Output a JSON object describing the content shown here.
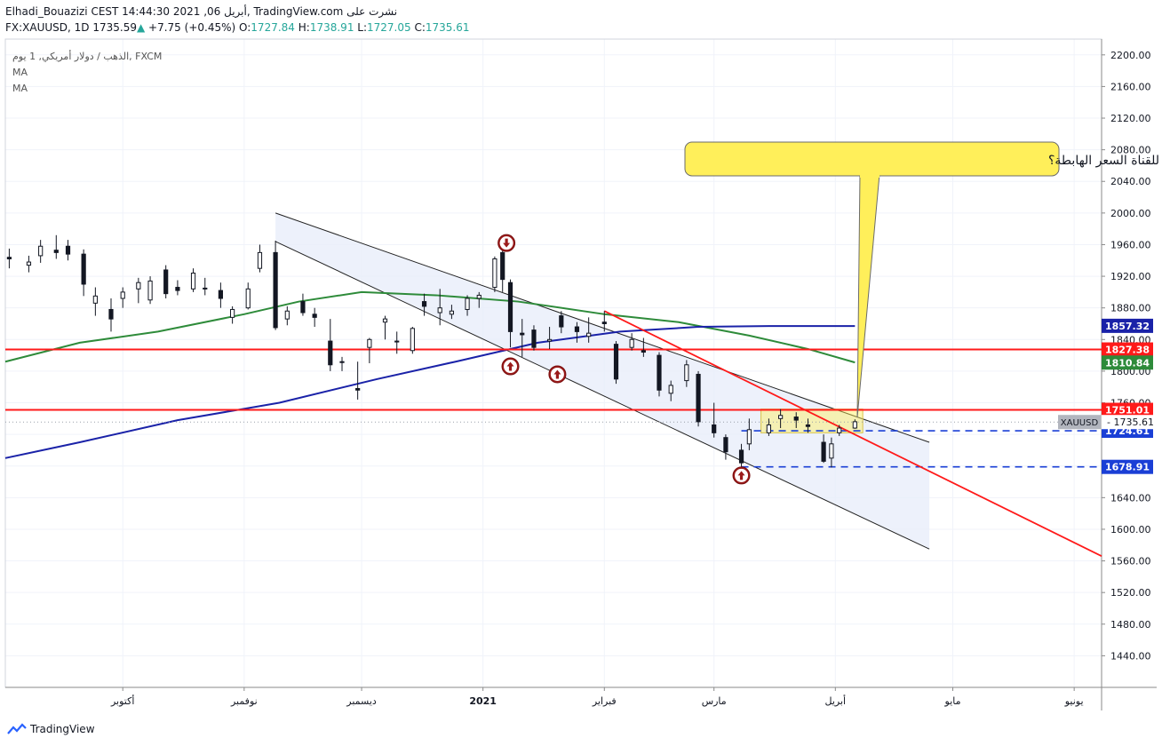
{
  "header": {
    "line1": "Elhadi_Bouazizi CEST 14:44:30 2021 ,06 أبريل, TradingView.com نشرت على",
    "symbol": "FX:XAUUSD, 1D",
    "last": "1735.59",
    "change": "+7.75 (+0.45%)",
    "open_label": "O:",
    "open": "1727.84",
    "high_label": "H:",
    "high": "1738.91",
    "low_label": "L:",
    "low": "1727.05",
    "close_label": "C:",
    "close": "1735.61"
  },
  "legend": {
    "instrument": "الذهب / دولار أمريكي, 1 يوم, FXCM",
    "ma1": "MA",
    "ma2": "MA"
  },
  "colors": {
    "up": "#26a69a",
    "candle": "#131722",
    "ma_green": "#2e8b3a",
    "ma_blue": "#1a22a8",
    "level_red": "#ff1a1a",
    "dashed_blue": "#1a3fd6",
    "channel_fill": "#e8eefa",
    "callout_fill": "#ffef5a"
  },
  "callout": {
    "text": "هل تتشكل نقطة الارتكاز الرابعة للقناة السعر الهابطة؟"
  },
  "footer": {
    "brand": "TradingView"
  },
  "chart_data": {
    "type": "candlestick",
    "title": "",
    "ylim": [
      1400,
      2220
    ],
    "y_ticks": [
      1440,
      1480,
      1520,
      1560,
      1600,
      1640,
      1680,
      1720,
      1760,
      1800,
      1840,
      1880,
      1920,
      1960,
      2000,
      2040,
      2080,
      2120,
      2160,
      2200
    ],
    "x_labels": [
      {
        "label": "أكتوبر",
        "date": "2020-10-01"
      },
      {
        "label": "نوفمبر",
        "date": "2020-11-01"
      },
      {
        "label": "ديسمبر",
        "date": "2020-12-01"
      },
      {
        "label": "2021",
        "date": "2021-01-01"
      },
      {
        "label": "فبراير",
        "date": "2021-02-01"
      },
      {
        "label": "مارس",
        "date": "2021-03-01"
      },
      {
        "label": "أبريل",
        "date": "2021-04-01"
      },
      {
        "label": "مايو",
        "date": "2021-05-01"
      },
      {
        "label": "يونيو",
        "date": "2021-06-01"
      }
    ],
    "x_range": [
      "2020-09-01",
      "2021-06-08"
    ],
    "horizontal_levels": [
      {
        "value": 1827.38,
        "label": "1827.38",
        "style": "solid",
        "color": "#ff1a1a"
      },
      {
        "value": 1751.01,
        "label": "1751.01",
        "style": "solid",
        "color": "#ff1a1a"
      },
      {
        "value": 1724.61,
        "label": "1724.61",
        "style": "dashed",
        "color": "#1a3fd6"
      },
      {
        "value": 1678.91,
        "label": "1678.91",
        "style": "dashed",
        "color": "#1a3fd6"
      }
    ],
    "price_labels": [
      {
        "value": 1857.32,
        "label": "1857.32",
        "color": "#1a22a8"
      },
      {
        "value": 1810.84,
        "label": "1810.84",
        "color": "#2e8b3a"
      },
      {
        "value": 1735.61,
        "label": "1735.61",
        "color": "#8e8e8e",
        "symbol": "XAUUSD"
      }
    ],
    "candles": [
      {
        "d": "2020-09-02",
        "o": 1944,
        "h": 1955,
        "l": 1930,
        "c": 1942
      },
      {
        "d": "2020-09-07",
        "o": 1934,
        "h": 1946,
        "l": 1925,
        "c": 1938
      },
      {
        "d": "2020-09-10",
        "o": 1946,
        "h": 1966,
        "l": 1937,
        "c": 1958
      },
      {
        "d": "2020-09-14",
        "o": 1953,
        "h": 1972,
        "l": 1942,
        "c": 1950
      },
      {
        "d": "2020-09-17",
        "o": 1958,
        "h": 1966,
        "l": 1940,
        "c": 1948
      },
      {
        "d": "2020-09-21",
        "o": 1948,
        "h": 1954,
        "l": 1895,
        "c": 1910
      },
      {
        "d": "2020-09-24",
        "o": 1886,
        "h": 1906,
        "l": 1870,
        "c": 1895
      },
      {
        "d": "2020-09-28",
        "o": 1878,
        "h": 1892,
        "l": 1850,
        "c": 1866
      },
      {
        "d": "2020-10-01",
        "o": 1892,
        "h": 1906,
        "l": 1880,
        "c": 1900
      },
      {
        "d": "2020-10-05",
        "o": 1904,
        "h": 1918,
        "l": 1886,
        "c": 1912
      },
      {
        "d": "2020-10-08",
        "o": 1890,
        "h": 1920,
        "l": 1885,
        "c": 1914
      },
      {
        "d": "2020-10-12",
        "o": 1928,
        "h": 1934,
        "l": 1892,
        "c": 1898
      },
      {
        "d": "2020-10-15",
        "o": 1906,
        "h": 1915,
        "l": 1896,
        "c": 1902
      },
      {
        "d": "2020-10-19",
        "o": 1904,
        "h": 1930,
        "l": 1900,
        "c": 1924
      },
      {
        "d": "2020-10-22",
        "o": 1905,
        "h": 1918,
        "l": 1896,
        "c": 1904
      },
      {
        "d": "2020-10-26",
        "o": 1902,
        "h": 1912,
        "l": 1880,
        "c": 1892
      },
      {
        "d": "2020-10-29",
        "o": 1868,
        "h": 1882,
        "l": 1860,
        "c": 1878
      },
      {
        "d": "2020-11-02",
        "o": 1880,
        "h": 1912,
        "l": 1878,
        "c": 1904
      },
      {
        "d": "2020-11-05",
        "o": 1930,
        "h": 1960,
        "l": 1925,
        "c": 1950
      },
      {
        "d": "2020-11-09",
        "o": 1950,
        "h": 1965,
        "l": 1852,
        "c": 1855
      },
      {
        "d": "2020-11-12",
        "o": 1866,
        "h": 1882,
        "l": 1858,
        "c": 1876
      },
      {
        "d": "2020-11-16",
        "o": 1888,
        "h": 1898,
        "l": 1870,
        "c": 1874
      },
      {
        "d": "2020-11-19",
        "o": 1872,
        "h": 1880,
        "l": 1856,
        "c": 1868
      },
      {
        "d": "2020-11-23",
        "o": 1838,
        "h": 1866,
        "l": 1800,
        "c": 1808
      },
      {
        "d": "2020-11-26",
        "o": 1812,
        "h": 1818,
        "l": 1800,
        "c": 1812
      },
      {
        "d": "2020-11-30",
        "o": 1778,
        "h": 1812,
        "l": 1764,
        "c": 1776
      },
      {
        "d": "2020-12-03",
        "o": 1830,
        "h": 1842,
        "l": 1810,
        "c": 1840
      },
      {
        "d": "2020-12-07",
        "o": 1862,
        "h": 1870,
        "l": 1840,
        "c": 1866
      },
      {
        "d": "2020-12-10",
        "o": 1838,
        "h": 1850,
        "l": 1822,
        "c": 1838
      },
      {
        "d": "2020-12-14",
        "o": 1826,
        "h": 1856,
        "l": 1822,
        "c": 1854
      },
      {
        "d": "2020-12-17",
        "o": 1888,
        "h": 1898,
        "l": 1870,
        "c": 1882
      },
      {
        "d": "2020-12-21",
        "o": 1874,
        "h": 1904,
        "l": 1858,
        "c": 1880
      },
      {
        "d": "2020-12-24",
        "o": 1872,
        "h": 1884,
        "l": 1866,
        "c": 1876
      },
      {
        "d": "2020-12-28",
        "o": 1878,
        "h": 1896,
        "l": 1870,
        "c": 1892
      },
      {
        "d": "2020-12-31",
        "o": 1892,
        "h": 1900,
        "l": 1880,
        "c": 1896
      },
      {
        "d": "2021-01-04",
        "o": 1906,
        "h": 1945,
        "l": 1900,
        "c": 1942
      },
      {
        "d": "2021-01-06",
        "o": 1950,
        "h": 1962,
        "l": 1900,
        "c": 1916
      },
      {
        "d": "2021-01-08",
        "o": 1912,
        "h": 1916,
        "l": 1830,
        "c": 1850
      },
      {
        "d": "2021-01-11",
        "o": 1848,
        "h": 1866,
        "l": 1818,
        "c": 1846
      },
      {
        "d": "2021-01-14",
        "o": 1852,
        "h": 1858,
        "l": 1826,
        "c": 1830
      },
      {
        "d": "2021-01-18",
        "o": 1838,
        "h": 1856,
        "l": 1828,
        "c": 1840
      },
      {
        "d": "2021-01-21",
        "o": 1870,
        "h": 1876,
        "l": 1848,
        "c": 1856
      },
      {
        "d": "2021-01-25",
        "o": 1856,
        "h": 1862,
        "l": 1836,
        "c": 1850
      },
      {
        "d": "2021-01-28",
        "o": 1844,
        "h": 1868,
        "l": 1836,
        "c": 1848
      },
      {
        "d": "2021-02-01",
        "o": 1862,
        "h": 1876,
        "l": 1850,
        "c": 1860
      },
      {
        "d": "2021-02-04",
        "o": 1834,
        "h": 1838,
        "l": 1784,
        "c": 1790
      },
      {
        "d": "2021-02-08",
        "o": 1830,
        "h": 1848,
        "l": 1826,
        "c": 1840
      },
      {
        "d": "2021-02-11",
        "o": 1826,
        "h": 1842,
        "l": 1818,
        "c": 1824
      },
      {
        "d": "2021-02-15",
        "o": 1820,
        "h": 1824,
        "l": 1768,
        "c": 1776
      },
      {
        "d": "2021-02-18",
        "o": 1772,
        "h": 1788,
        "l": 1762,
        "c": 1782
      },
      {
        "d": "2021-02-22",
        "o": 1788,
        "h": 1814,
        "l": 1780,
        "c": 1808
      },
      {
        "d": "2021-02-25",
        "o": 1796,
        "h": 1800,
        "l": 1730,
        "c": 1736
      },
      {
        "d": "2021-03-01",
        "o": 1732,
        "h": 1760,
        "l": 1716,
        "c": 1722
      },
      {
        "d": "2021-03-04",
        "o": 1716,
        "h": 1720,
        "l": 1688,
        "c": 1698
      },
      {
        "d": "2021-03-08",
        "o": 1700,
        "h": 1708,
        "l": 1676,
        "c": 1684
      },
      {
        "d": "2021-03-10",
        "o": 1708,
        "h": 1740,
        "l": 1700,
        "c": 1726
      },
      {
        "d": "2021-03-15",
        "o": 1722,
        "h": 1740,
        "l": 1718,
        "c": 1732
      },
      {
        "d": "2021-03-18",
        "o": 1740,
        "h": 1752,
        "l": 1728,
        "c": 1744
      },
      {
        "d": "2021-03-22",
        "o": 1742,
        "h": 1748,
        "l": 1728,
        "c": 1738
      },
      {
        "d": "2021-03-25",
        "o": 1732,
        "h": 1740,
        "l": 1722,
        "c": 1730
      },
      {
        "d": "2021-03-29",
        "o": 1710,
        "h": 1720,
        "l": 1684,
        "c": 1686
      },
      {
        "d": "2021-03-31",
        "o": 1690,
        "h": 1716,
        "l": 1678,
        "c": 1708
      },
      {
        "d": "2021-04-02",
        "o": 1722,
        "h": 1732,
        "l": 1718,
        "c": 1728
      },
      {
        "d": "2021-04-06",
        "o": 1728,
        "h": 1739,
        "l": 1727,
        "c": 1736
      }
    ],
    "series": [
      {
        "name": "",
        "color": "#2e8b3a",
        "points": [
          [
            "2020-09-01",
            1812
          ],
          [
            "2020-09-20",
            1836
          ],
          [
            "2020-10-10",
            1850
          ],
          [
            "2020-11-01",
            1872
          ],
          [
            "2020-11-15",
            1888
          ],
          [
            "2020-12-01",
            1900
          ],
          [
            "2020-12-20",
            1896
          ],
          [
            "2021-01-10",
            1888
          ],
          [
            "2021-02-01",
            1872
          ],
          [
            "2021-02-20",
            1862
          ],
          [
            "2021-03-10",
            1845
          ],
          [
            "2021-03-25",
            1828
          ],
          [
            "2021-04-06",
            1811
          ]
        ]
      },
      {
        "name": "",
        "color": "#1a22a8",
        "points": [
          [
            "2020-09-01",
            1690
          ],
          [
            "2020-09-20",
            1710
          ],
          [
            "2020-10-15",
            1738
          ],
          [
            "2020-11-10",
            1760
          ],
          [
            "2020-12-05",
            1790
          ],
          [
            "2020-12-25",
            1812
          ],
          [
            "2021-01-15",
            1836
          ],
          [
            "2021-02-05",
            1850
          ],
          [
            "2021-02-25",
            1856
          ],
          [
            "2021-03-15",
            1857
          ],
          [
            "2021-04-06",
            1857
          ]
        ]
      }
    ],
    "channel": {
      "upper": [
        [
          "2020-11-09",
          2000
        ],
        [
          "2021-04-25",
          1710
        ]
      ],
      "lower": [
        [
          "2020-11-09",
          1964
        ],
        [
          "2021-04-25",
          1575
        ]
      ]
    },
    "trendline": [
      [
        "2021-02-01",
        1876
      ],
      [
        "2021-06-08",
        1566
      ]
    ],
    "consolidation_box": {
      "x": [
        "2021-03-13",
        "2021-04-08"
      ],
      "y": [
        1722,
        1752
      ]
    },
    "markers": [
      {
        "date": "2021-01-07",
        "price": 1962,
        "dir": "down"
      },
      {
        "date": "2021-01-08",
        "price": 1806,
        "dir": "up"
      },
      {
        "date": "2021-01-20",
        "price": 1796,
        "dir": "up"
      },
      {
        "date": "2021-03-08",
        "price": 1668,
        "dir": "up"
      }
    ]
  }
}
